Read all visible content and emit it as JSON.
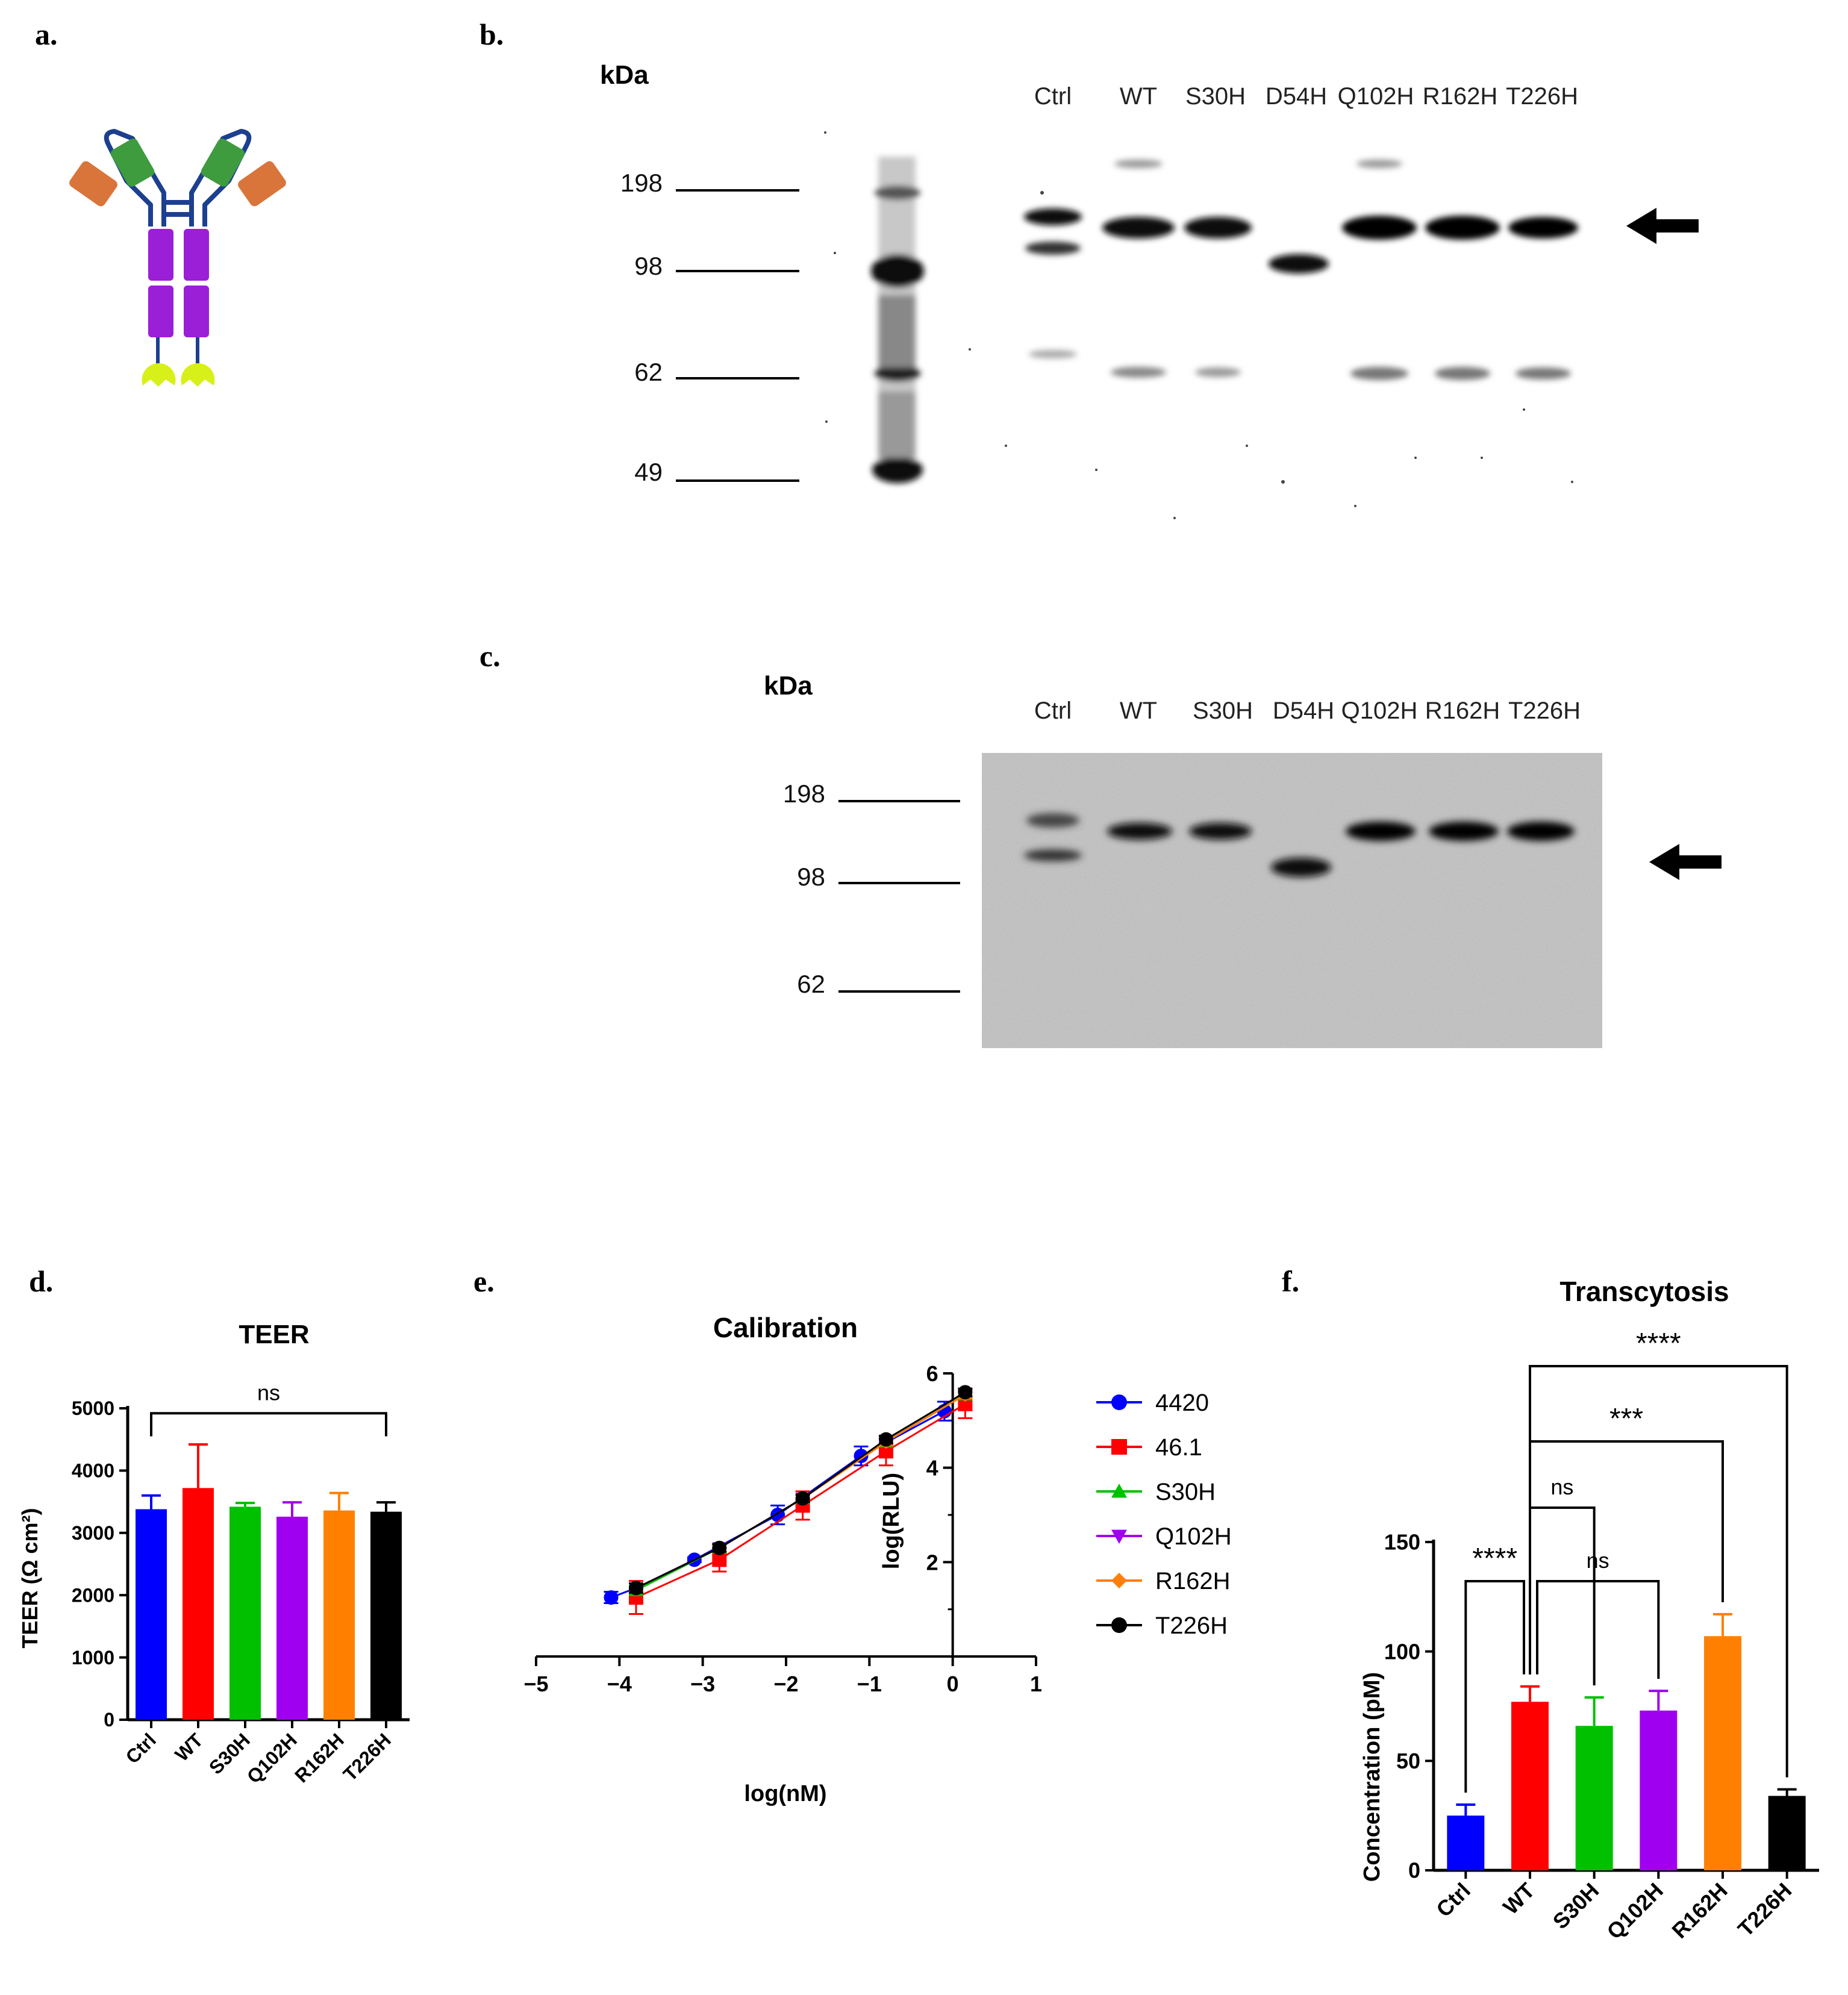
{
  "panels": {
    "a": "a.",
    "b": "b.",
    "c": "c.",
    "d": "d.",
    "e": "e.",
    "f": "f."
  },
  "gel_b": {
    "unit_label": "kDa",
    "lanes": [
      "Ctrl",
      "WT",
      "S30H",
      "D54H",
      "Q102H",
      "R162H",
      "T226H"
    ],
    "markers": [
      "198",
      "98",
      "62",
      "49"
    ]
  },
  "gel_c": {
    "unit_label": "kDa",
    "lanes": [
      "Ctrl",
      "WT",
      "S30H",
      "D54H",
      "Q102H",
      "R162H",
      "T226H"
    ],
    "markers": [
      "198",
      "98",
      "62"
    ]
  },
  "colors": {
    "blue": "#0000ff",
    "red": "#ff0000",
    "green": "#00c000",
    "purple": "#a000f0",
    "orange": "#ff8000",
    "black": "#000000"
  },
  "chart_data": [
    {
      "type": "bar",
      "title": "TEER",
      "ylabel": "TEER  (Ω cm²)",
      "xlabel": "",
      "categories": [
        "Ctrl",
        "WT",
        "S30H",
        "Q102H",
        "R162H",
        "T226H"
      ],
      "values": [
        3380,
        3720,
        3420,
        3260,
        3360,
        3340
      ],
      "errors": [
        220,
        700,
        60,
        230,
        280,
        150
      ],
      "colors": [
        "#0000ff",
        "#ff0000",
        "#00c000",
        "#a000f0",
        "#ff8000",
        "#000000"
      ],
      "ylim": [
        0,
        5000
      ],
      "yticks": [
        "0",
        "1000",
        "2000",
        "3000",
        "4000",
        "5000"
      ],
      "significance": [
        {
          "from": "Ctrl",
          "to": "T226H",
          "label": "ns"
        }
      ]
    },
    {
      "type": "line",
      "title": "Calibration",
      "xlabel": "log(nM)",
      "ylabel": "log(RLU)",
      "xlim": [
        -5,
        1
      ],
      "ylim": [
        0,
        6
      ],
      "xticks": [
        "−5",
        "−4",
        "−3",
        "−2",
        "−1",
        "0",
        "1"
      ],
      "yticks": [
        "2",
        "4",
        "6"
      ],
      "legend_position": "right",
      "series": [
        {
          "name": "4420",
          "color": "#0000ff",
          "marker": "circle",
          "x": [
            -4.1,
            -3.8,
            -3.1,
            -2.1,
            -1.1,
            -0.1
          ],
          "y": [
            1.25,
            1.45,
            2.05,
            3.0,
            4.25,
            5.2
          ],
          "err": [
            0.12,
            0.1,
            0.05,
            0.2,
            0.2,
            0.2
          ]
        },
        {
          "name": "46.1",
          "color": "#ff0000",
          "marker": "square",
          "x": [
            -3.8,
            -2.8,
            -1.8,
            -0.8,
            0.15
          ],
          "y": [
            1.25,
            2.05,
            3.2,
            4.35,
            5.35
          ],
          "err": [
            0.35,
            0.25,
            0.3,
            0.3,
            0.3
          ]
        },
        {
          "name": "S30H",
          "color": "#00c000",
          "marker": "triangle-up",
          "x": [
            -3.8,
            -2.8,
            -1.8,
            -0.8,
            0.15
          ],
          "y": [
            1.4,
            2.3,
            3.35,
            4.55,
            5.55
          ],
          "err": [
            0.1,
            0.08,
            0.08,
            0.08,
            0.08
          ]
        },
        {
          "name": "Q102H",
          "color": "#a000f0",
          "marker": "triangle-down",
          "x": [
            -3.8,
            -2.8,
            -1.8,
            -0.8,
            0.15
          ],
          "y": [
            1.45,
            2.3,
            3.35,
            4.55,
            5.55
          ],
          "err": [
            0.1,
            0.08,
            0.08,
            0.08,
            0.08
          ]
        },
        {
          "name": "R162H",
          "color": "#ff8000",
          "marker": "diamond",
          "x": [
            -3.8,
            -2.8,
            -1.8,
            -0.8,
            0.15
          ],
          "y": [
            1.45,
            2.3,
            3.35,
            4.55,
            5.55
          ],
          "err": [
            0.1,
            0.08,
            0.08,
            0.08,
            0.08
          ]
        },
        {
          "name": "T226H",
          "color": "#000000",
          "marker": "circle",
          "x": [
            -3.8,
            -2.8,
            -1.8,
            -0.8,
            0.15
          ],
          "y": [
            1.45,
            2.3,
            3.35,
            4.6,
            5.6
          ],
          "err": [
            0.1,
            0.08,
            0.08,
            0.08,
            0.08
          ]
        }
      ]
    },
    {
      "type": "bar",
      "title": "Transcytosis",
      "ylabel": "Concentration (pM)",
      "xlabel": "",
      "categories": [
        "Ctrl",
        "WT",
        "S30H",
        "Q102H",
        "R162H",
        "T226H"
      ],
      "values": [
        25,
        77,
        66,
        73,
        107,
        34
      ],
      "errors": [
        5,
        7,
        13,
        9,
        10,
        3
      ],
      "colors": [
        "#0000ff",
        "#ff0000",
        "#00c000",
        "#a000f0",
        "#ff8000",
        "#000000"
      ],
      "ylim": [
        0,
        150
      ],
      "yticks": [
        "0",
        "50",
        "100",
        "150"
      ],
      "significance": [
        {
          "from": "WT",
          "to": "T226H",
          "label": "****"
        },
        {
          "from": "WT",
          "to": "R162H",
          "label": "***"
        },
        {
          "from": "WT",
          "to": "S30H",
          "label": "ns"
        },
        {
          "from": "WT",
          "to": "Q102H",
          "label": "ns"
        },
        {
          "from": "Ctrl",
          "to": "WT",
          "label": "****"
        }
      ]
    }
  ]
}
